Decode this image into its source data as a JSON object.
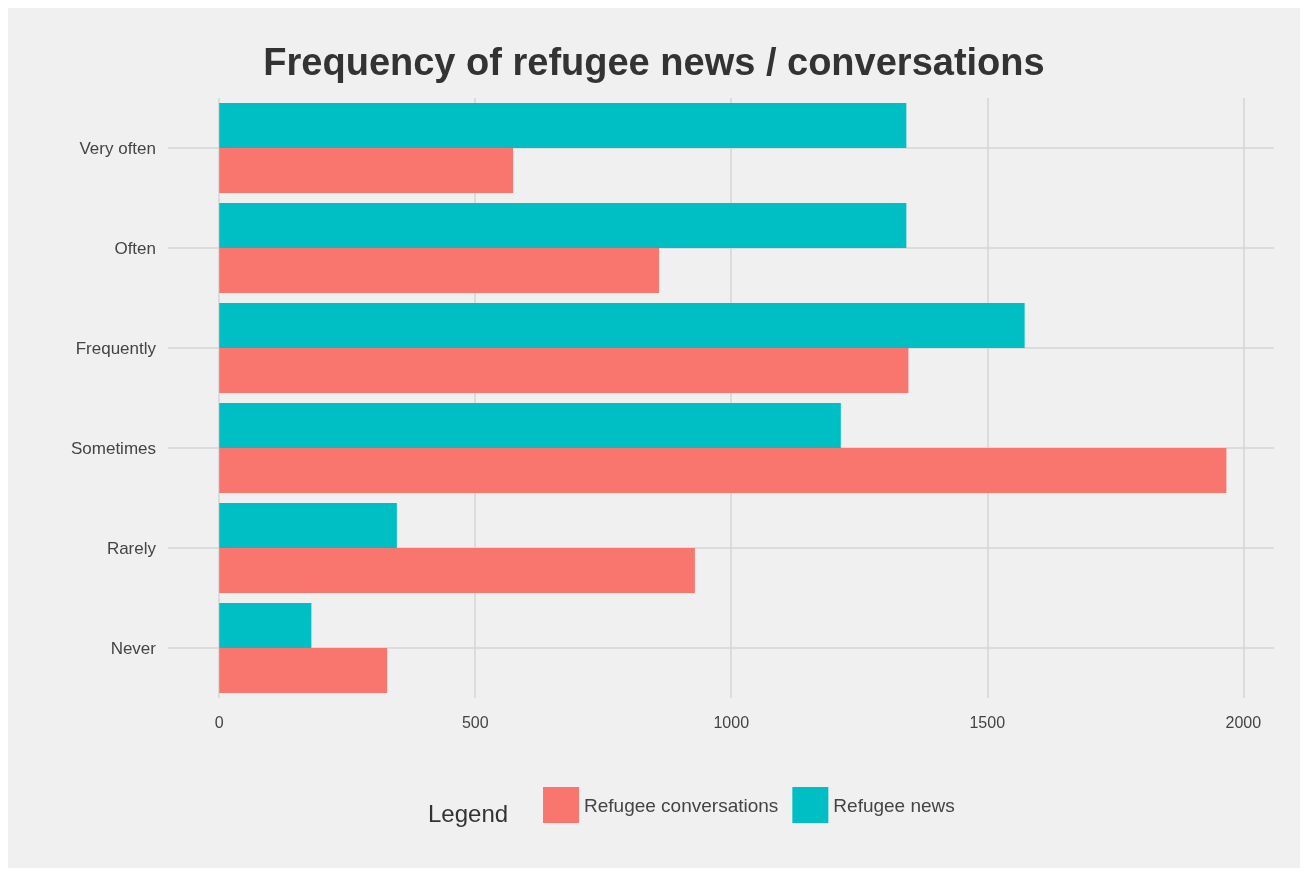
{
  "chart_data": {
    "type": "bar",
    "orientation": "horizontal",
    "title": "Frequency of refugee news / conversations",
    "legend_title": "Legend",
    "categories": [
      "Very often",
      "Often",
      "Frequently",
      "Sometimes",
      "Rarely",
      "Never"
    ],
    "series": [
      {
        "name": "Refugee conversations",
        "color": "#f8766d",
        "values": [
          574,
          859,
          1346,
          1967,
          929,
          328
        ]
      },
      {
        "name": "Refugee news",
        "color": "#00bfc4",
        "values": [
          1342,
          1342,
          1573,
          1214,
          347,
          180
        ]
      }
    ],
    "xlim": [
      -100,
      2060
    ],
    "xticks": [
      0,
      500,
      1000,
      1500,
      2000
    ],
    "grid": true,
    "legend": "bottom"
  }
}
